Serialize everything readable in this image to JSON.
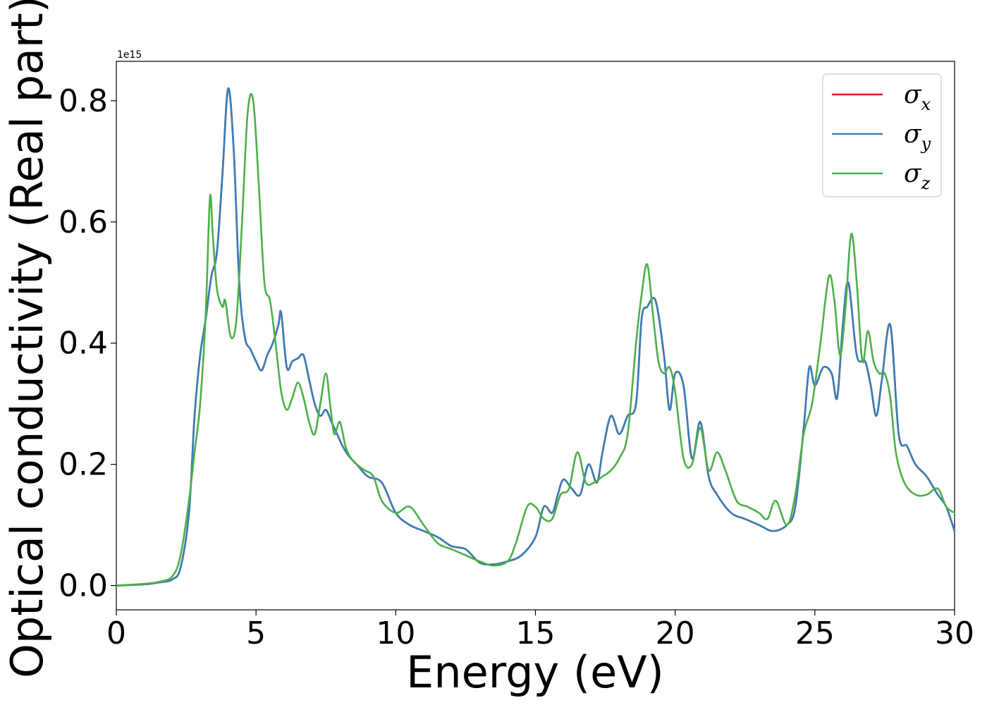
{
  "chart_data": {
    "type": "line",
    "title": "",
    "xlabel": "Energy (eV)",
    "ylabel": "Optical conductivity (Real part)",
    "y_offset_label": "1e15",
    "xlim": [
      0,
      30
    ],
    "ylim": [
      -0.04,
      0.865
    ],
    "xticks": [
      0,
      5,
      10,
      15,
      20,
      25,
      30
    ],
    "xtick_labels": [
      "0",
      "5",
      "10",
      "15",
      "20",
      "25",
      "30"
    ],
    "yticks": [
      0.0,
      0.2,
      0.4,
      0.6,
      0.8
    ],
    "ytick_labels": [
      "0.0",
      "0.2",
      "0.4",
      "0.6",
      "0.8"
    ],
    "grid": false,
    "legend_position": "top-right",
    "series": [
      {
        "name": "σx",
        "legend_symbol": "σ",
        "legend_sub": "x",
        "color": "#e41a1c",
        "x": [
          0,
          1,
          1.5,
          2,
          2.3,
          2.6,
          2.8,
          3.0,
          3.2,
          3.4,
          3.6,
          3.8,
          4.0,
          4.2,
          4.4,
          4.6,
          4.8,
          5.0,
          5.2,
          5.4,
          5.6,
          5.8,
          5.9,
          6.1,
          6.3,
          6.5,
          6.7,
          6.9,
          7.1,
          7.3,
          7.5,
          7.7,
          7.9,
          8.1,
          8.3,
          8.6,
          9.0,
          9.5,
          10.0,
          10.5,
          11.0,
          11.5,
          12.0,
          12.5,
          13.0,
          13.5,
          14.0,
          14.5,
          15.0,
          15.3,
          15.6,
          15.8,
          16.0,
          16.3,
          16.6,
          16.9,
          17.2,
          17.4,
          17.7,
          18.0,
          18.3,
          18.6,
          18.8,
          19.0,
          19.3,
          19.6,
          19.8,
          20.0,
          20.3,
          20.6,
          20.9,
          21.2,
          21.5,
          22.0,
          22.5,
          23.0,
          23.5,
          24.0,
          24.3,
          24.6,
          24.8,
          25.0,
          25.3,
          25.6,
          25.8,
          26.0,
          26.2,
          26.5,
          26.8,
          27.0,
          27.2,
          27.4,
          27.7,
          28.0,
          28.3,
          28.6,
          29.0,
          29.4,
          29.7,
          30.0
        ],
        "y": [
          0.0,
          0.002,
          0.005,
          0.01,
          0.03,
          0.12,
          0.28,
          0.38,
          0.44,
          0.51,
          0.55,
          0.68,
          0.82,
          0.72,
          0.5,
          0.41,
          0.39,
          0.37,
          0.355,
          0.38,
          0.4,
          0.43,
          0.45,
          0.36,
          0.37,
          0.375,
          0.38,
          0.34,
          0.3,
          0.28,
          0.29,
          0.27,
          0.25,
          0.23,
          0.215,
          0.2,
          0.18,
          0.17,
          0.12,
          0.1,
          0.09,
          0.08,
          0.065,
          0.06,
          0.038,
          0.035,
          0.04,
          0.05,
          0.08,
          0.13,
          0.12,
          0.15,
          0.175,
          0.16,
          0.15,
          0.2,
          0.17,
          0.22,
          0.28,
          0.25,
          0.28,
          0.3,
          0.44,
          0.46,
          0.47,
          0.38,
          0.29,
          0.35,
          0.33,
          0.21,
          0.27,
          0.18,
          0.15,
          0.12,
          0.11,
          0.1,
          0.09,
          0.1,
          0.13,
          0.26,
          0.36,
          0.33,
          0.36,
          0.35,
          0.31,
          0.43,
          0.5,
          0.38,
          0.37,
          0.33,
          0.28,
          0.34,
          0.43,
          0.25,
          0.23,
          0.2,
          0.18,
          0.15,
          0.13,
          0.09
        ]
      },
      {
        "name": "σy",
        "legend_symbol": "σ",
        "legend_sub": "y",
        "color": "#377eb8",
        "x": [
          0,
          1,
          1.5,
          2,
          2.3,
          2.6,
          2.8,
          3.0,
          3.2,
          3.4,
          3.6,
          3.8,
          4.0,
          4.2,
          4.4,
          4.6,
          4.8,
          5.0,
          5.2,
          5.4,
          5.6,
          5.8,
          5.9,
          6.1,
          6.3,
          6.5,
          6.7,
          6.9,
          7.1,
          7.3,
          7.5,
          7.7,
          7.9,
          8.1,
          8.3,
          8.6,
          9.0,
          9.5,
          10.0,
          10.5,
          11.0,
          11.5,
          12.0,
          12.5,
          13.0,
          13.5,
          14.0,
          14.5,
          15.0,
          15.3,
          15.6,
          15.8,
          16.0,
          16.3,
          16.6,
          16.9,
          17.2,
          17.4,
          17.7,
          18.0,
          18.3,
          18.6,
          18.8,
          19.0,
          19.3,
          19.6,
          19.8,
          20.0,
          20.3,
          20.6,
          20.9,
          21.2,
          21.5,
          22.0,
          22.5,
          23.0,
          23.5,
          24.0,
          24.3,
          24.6,
          24.8,
          25.0,
          25.3,
          25.6,
          25.8,
          26.0,
          26.2,
          26.5,
          26.8,
          27.0,
          27.2,
          27.4,
          27.7,
          28.0,
          28.3,
          28.6,
          29.0,
          29.4,
          29.7,
          30.0
        ],
        "y": [
          0.0,
          0.002,
          0.005,
          0.01,
          0.03,
          0.12,
          0.28,
          0.38,
          0.44,
          0.51,
          0.55,
          0.68,
          0.82,
          0.72,
          0.5,
          0.41,
          0.39,
          0.37,
          0.355,
          0.38,
          0.4,
          0.43,
          0.45,
          0.36,
          0.37,
          0.375,
          0.38,
          0.34,
          0.3,
          0.28,
          0.29,
          0.27,
          0.25,
          0.23,
          0.215,
          0.2,
          0.18,
          0.17,
          0.12,
          0.1,
          0.09,
          0.08,
          0.065,
          0.06,
          0.038,
          0.035,
          0.04,
          0.05,
          0.08,
          0.13,
          0.12,
          0.15,
          0.175,
          0.16,
          0.15,
          0.2,
          0.17,
          0.22,
          0.28,
          0.25,
          0.28,
          0.3,
          0.44,
          0.46,
          0.47,
          0.38,
          0.29,
          0.35,
          0.33,
          0.21,
          0.27,
          0.18,
          0.15,
          0.12,
          0.11,
          0.1,
          0.09,
          0.1,
          0.13,
          0.26,
          0.36,
          0.33,
          0.36,
          0.35,
          0.31,
          0.43,
          0.5,
          0.38,
          0.37,
          0.33,
          0.28,
          0.34,
          0.43,
          0.25,
          0.23,
          0.2,
          0.18,
          0.15,
          0.13,
          0.09
        ]
      },
      {
        "name": "σz",
        "legend_symbol": "σ",
        "legend_sub": "z",
        "color": "#4daf4a",
        "x": [
          0,
          1,
          1.5,
          2,
          2.3,
          2.6,
          2.8,
          3.0,
          3.2,
          3.35,
          3.45,
          3.6,
          3.8,
          3.9,
          4.1,
          4.3,
          4.5,
          4.7,
          4.9,
          5.1,
          5.3,
          5.5,
          5.7,
          5.9,
          6.1,
          6.3,
          6.5,
          6.7,
          6.9,
          7.1,
          7.3,
          7.5,
          7.65,
          7.8,
          8.0,
          8.2,
          8.4,
          8.6,
          8.9,
          9.2,
          9.5,
          10.0,
          10.5,
          11.0,
          11.5,
          12.0,
          12.5,
          13.0,
          13.5,
          14.0,
          14.3,
          14.7,
          15.0,
          15.3,
          15.6,
          15.9,
          16.2,
          16.5,
          16.8,
          17.1,
          17.4,
          17.7,
          18.0,
          18.3,
          18.6,
          18.8,
          19.0,
          19.2,
          19.4,
          19.6,
          19.8,
          20.0,
          20.3,
          20.6,
          20.9,
          21.2,
          21.5,
          21.8,
          22.2,
          22.6,
          23.0,
          23.3,
          23.6,
          24.0,
          24.3,
          24.6,
          24.9,
          25.2,
          25.5,
          25.7,
          25.9,
          26.1,
          26.3,
          26.5,
          26.7,
          26.9,
          27.1,
          27.3,
          27.5,
          27.7,
          27.9,
          28.2,
          28.6,
          29.0,
          29.4,
          29.7,
          30.0
        ],
        "y": [
          0.0,
          0.003,
          0.006,
          0.015,
          0.05,
          0.14,
          0.22,
          0.3,
          0.45,
          0.64,
          0.58,
          0.49,
          0.46,
          0.47,
          0.41,
          0.44,
          0.6,
          0.78,
          0.8,
          0.66,
          0.5,
          0.47,
          0.4,
          0.32,
          0.29,
          0.31,
          0.335,
          0.31,
          0.27,
          0.25,
          0.3,
          0.35,
          0.3,
          0.25,
          0.27,
          0.23,
          0.21,
          0.2,
          0.19,
          0.18,
          0.14,
          0.12,
          0.13,
          0.1,
          0.07,
          0.06,
          0.05,
          0.04,
          0.033,
          0.04,
          0.07,
          0.13,
          0.13,
          0.11,
          0.11,
          0.15,
          0.16,
          0.22,
          0.17,
          0.17,
          0.18,
          0.19,
          0.21,
          0.25,
          0.4,
          0.48,
          0.53,
          0.45,
          0.37,
          0.35,
          0.36,
          0.32,
          0.21,
          0.2,
          0.26,
          0.19,
          0.22,
          0.19,
          0.14,
          0.13,
          0.12,
          0.11,
          0.14,
          0.1,
          0.15,
          0.25,
          0.3,
          0.4,
          0.51,
          0.47,
          0.38,
          0.46,
          0.58,
          0.5,
          0.37,
          0.42,
          0.37,
          0.35,
          0.35,
          0.31,
          0.22,
          0.17,
          0.15,
          0.15,
          0.16,
          0.13,
          0.12
        ]
      }
    ]
  }
}
